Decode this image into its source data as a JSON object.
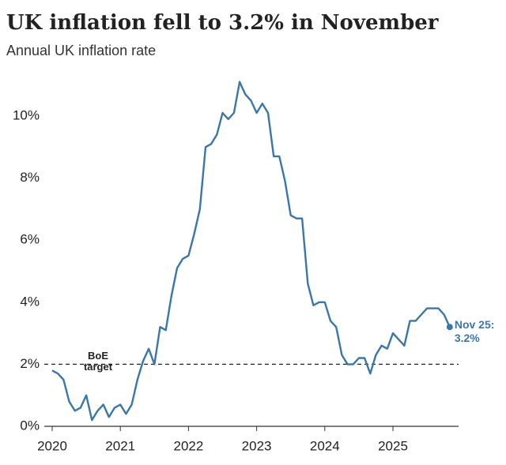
{
  "chart_data": {
    "type": "line",
    "title": "UK inflation fell to 3.2% in November",
    "subtitle": "Annual UK inflation rate",
    "categories": [
      "2020",
      null,
      null,
      null,
      null,
      null,
      null,
      null,
      null,
      null,
      null,
      null,
      "2021",
      null,
      null,
      null,
      null,
      null,
      null,
      null,
      null,
      null,
      null,
      null,
      "2022",
      null,
      null,
      null,
      null,
      null,
      null,
      null,
      null,
      null,
      null,
      null,
      "2023",
      null,
      null,
      null,
      null,
      null,
      null,
      null,
      null,
      null,
      null,
      null,
      "2024",
      null,
      null,
      null,
      null,
      null,
      null,
      null,
      null,
      null,
      null,
      null,
      "2025",
      null,
      null,
      null,
      null,
      null,
      null,
      null,
      null,
      null,
      null
    ],
    "values": [
      1.8,
      1.7,
      1.5,
      0.8,
      0.5,
      0.6,
      1.0,
      0.2,
      0.5,
      0.7,
      0.3,
      0.6,
      0.7,
      0.4,
      0.7,
      1.5,
      2.1,
      2.5,
      2.0,
      3.2,
      3.1,
      4.2,
      5.1,
      5.4,
      5.5,
      6.2,
      7.0,
      9.0,
      9.1,
      9.4,
      10.1,
      9.9,
      10.1,
      11.1,
      10.7,
      10.5,
      10.1,
      10.4,
      10.1,
      8.7,
      8.7,
      7.9,
      6.8,
      6.7,
      6.7,
      4.6,
      3.9,
      4.0,
      4.0,
      3.4,
      3.2,
      2.3,
      2.0,
      2.0,
      2.2,
      2.2,
      1.7,
      2.3,
      2.6,
      2.5,
      3.0,
      2.8,
      2.6,
      3.4,
      3.4,
      3.6,
      3.8,
      3.8,
      3.8,
      3.6,
      3.2
    ],
    "value_labels": [
      null,
      null,
      null,
      null,
      null,
      null,
      null,
      null,
      null,
      null,
      null,
      null,
      null,
      null,
      null,
      null,
      null,
      null,
      null,
      null,
      null,
      null,
      null,
      null,
      null,
      null,
      null,
      null,
      null,
      null,
      null,
      null,
      null,
      null,
      null,
      null,
      null,
      null,
      null,
      null,
      null,
      null,
      null,
      null,
      null,
      null,
      null,
      null,
      null,
      null,
      null,
      null,
      null,
      null,
      null,
      null,
      null,
      null,
      null,
      null,
      null,
      null,
      null,
      null,
      null,
      null,
      null,
      null,
      null,
      null,
      "3.2%"
    ],
    "annotation": "Nov 25:",
    "color": "#3a76a8",
    "ylim": [
      0,
      11.5
    ],
    "yticks": [
      {
        "value": 0,
        "label": "0%"
      },
      {
        "value": 2,
        "label": "2%"
      },
      {
        "value": 4,
        "label": "4%"
      },
      {
        "value": 6,
        "label": "6%"
      },
      {
        "value": 8,
        "label": "8%"
      },
      {
        "value": 10,
        "label": "10%"
      }
    ],
    "reference_line": {
      "value": 2,
      "label_lines": [
        "BoE",
        "target"
      ]
    },
    "grid": false
  }
}
